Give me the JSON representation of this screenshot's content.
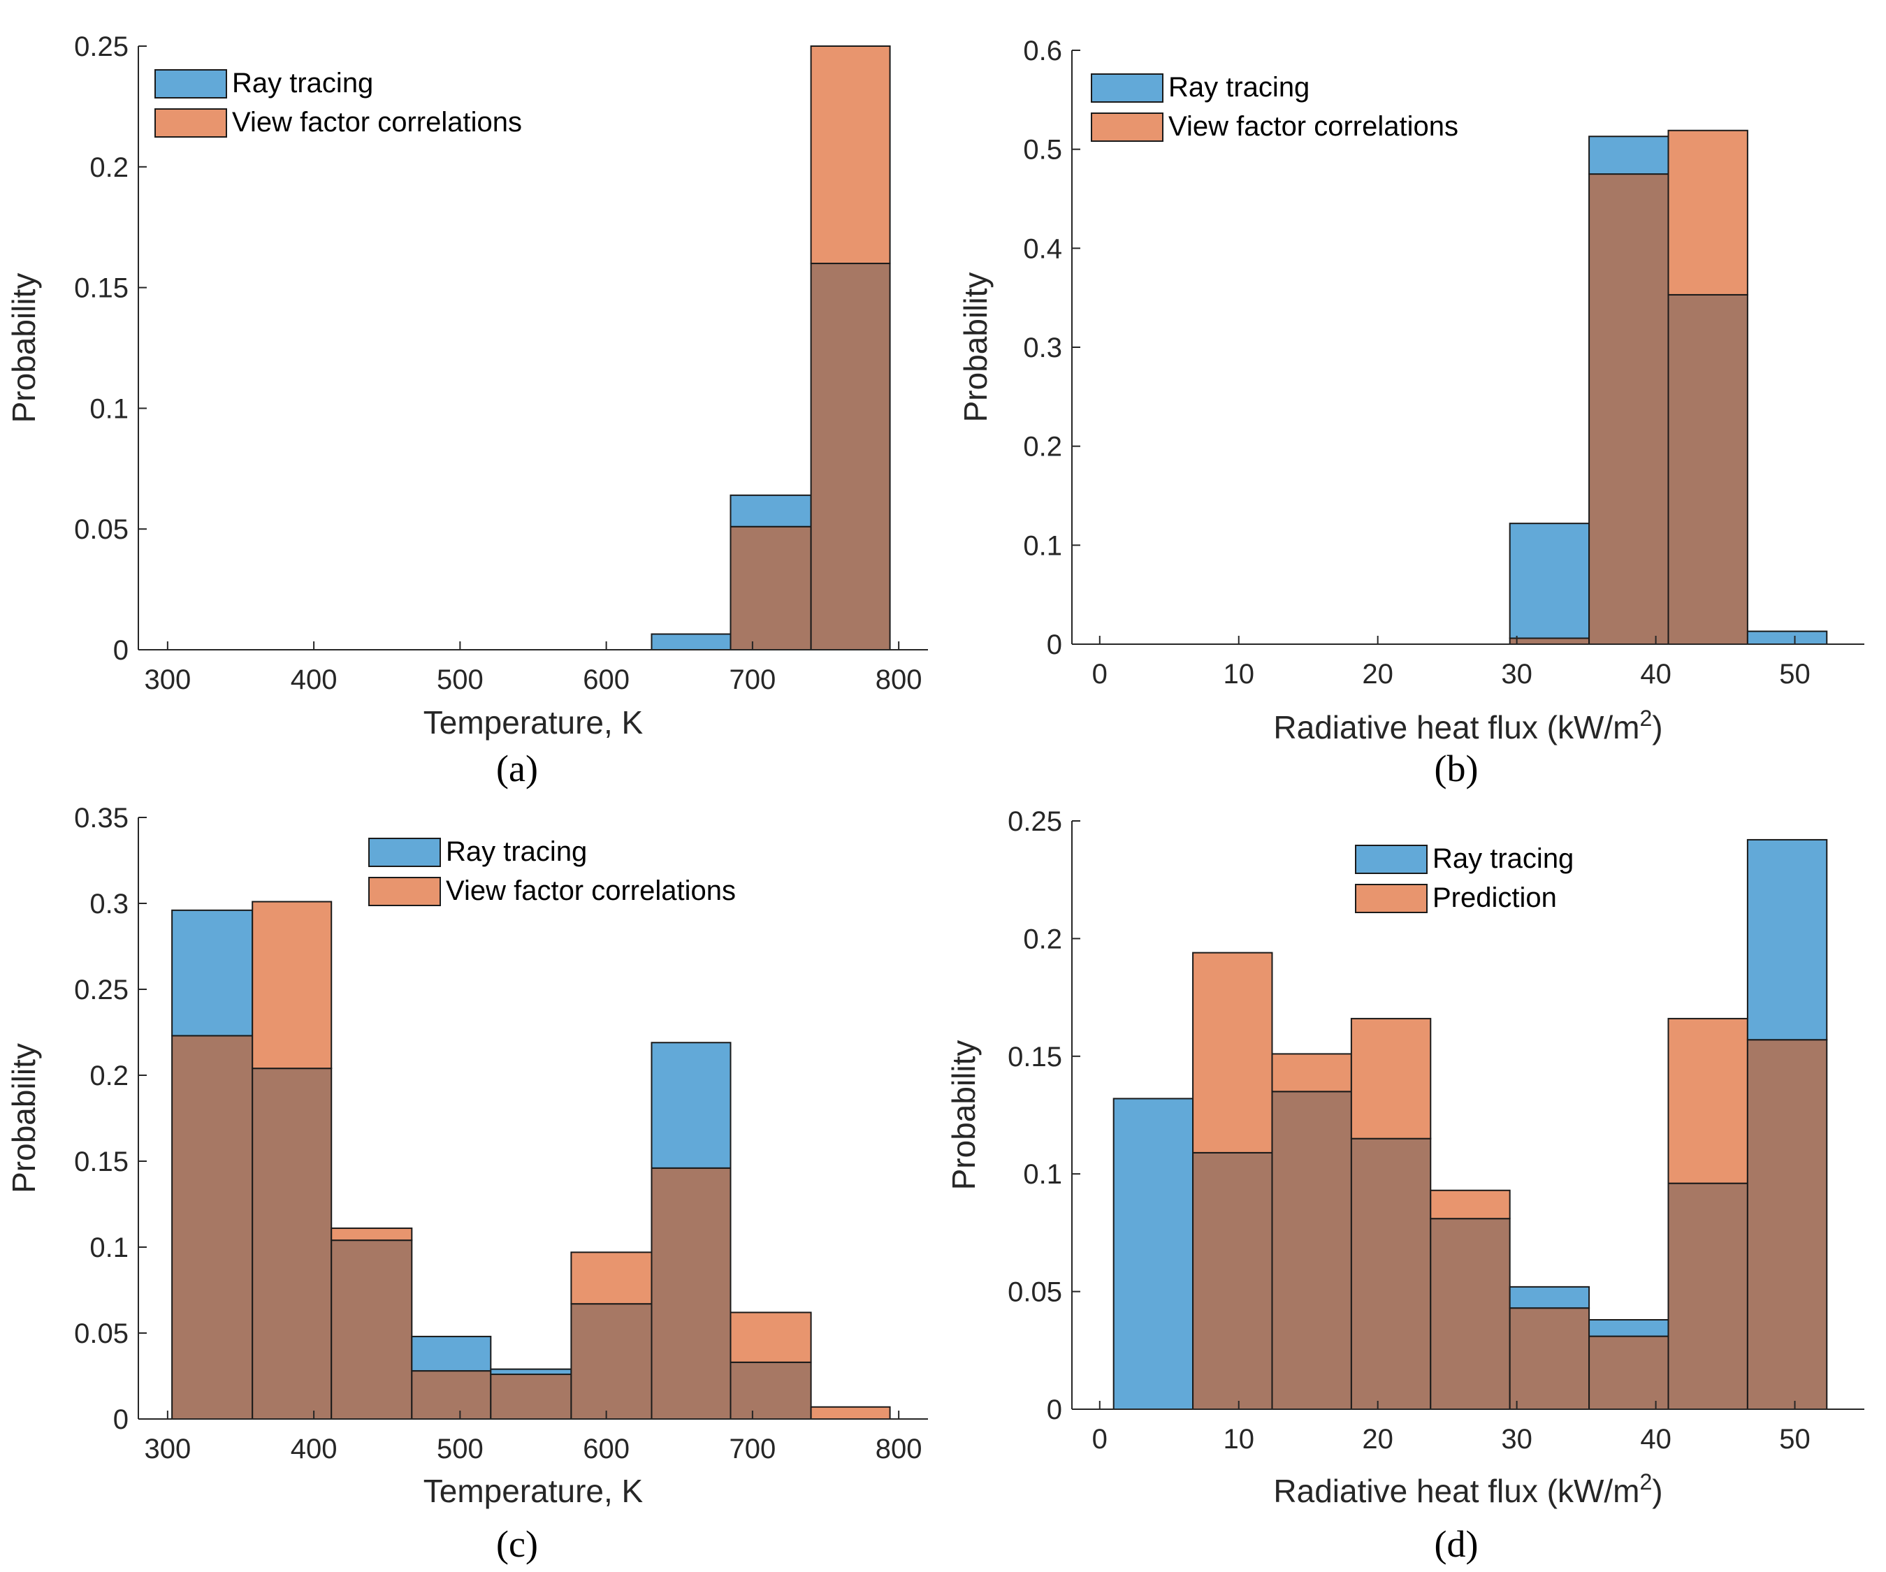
{
  "colors": {
    "ray": "#62a9d8",
    "vf": "#e8956e",
    "overlap": "#a77864",
    "axis": "#262626"
  },
  "chart_data": [
    {
      "panel": "(a)",
      "type": "bar",
      "xlabel": "Temperature, K",
      "xsup": "",
      "ylabel": "Probability",
      "xlim": [
        280,
        820
      ],
      "ylim": [
        0,
        0.25
      ],
      "xticks": [
        300,
        400,
        500,
        600,
        700,
        800
      ],
      "xtick_labels": [
        "300",
        "400",
        "500",
        "600",
        "700",
        "800"
      ],
      "yticks": [
        0,
        0.05,
        0.1,
        0.15,
        0.2,
        0.25
      ],
      "ytick_labels": [
        "0",
        "0.05",
        "0.1",
        "0.15",
        "0.2",
        "0.25"
      ],
      "bin_edges": [
        303,
        358,
        412,
        467,
        521,
        576,
        631,
        685,
        740,
        794
      ],
      "legend_position": "top-left",
      "series": [
        {
          "name": "Ray tracing",
          "values": [
            0,
            0,
            0,
            0,
            0,
            0,
            0.0065,
            0.064,
            0.16
          ]
        },
        {
          "name": "View factor correlations",
          "values": [
            0,
            0,
            0,
            0,
            0,
            0,
            0,
            0.051,
            0.25
          ]
        }
      ]
    },
    {
      "panel": "(b)",
      "type": "bar",
      "xlabel": "Radiative heat flux (kW/m",
      "xsup": "2",
      "xlabel_end": ")",
      "ylabel": "Probability",
      "xlim": [
        -2,
        55
      ],
      "ylim": [
        0,
        0.6
      ],
      "xticks": [
        0,
        10,
        20,
        30,
        40,
        50
      ],
      "xtick_labels": [
        "0",
        "10",
        "20",
        "30",
        "40",
        "50"
      ],
      "yticks": [
        0,
        0.1,
        0.2,
        0.3,
        0.4,
        0.5,
        0.6
      ],
      "ytick_labels": [
        "0",
        "0.1",
        "0.2",
        "0.3",
        "0.4",
        "0.5",
        "0.6"
      ],
      "bin_edges": [
        1,
        6.7,
        12.4,
        18.1,
        23.8,
        29.5,
        35.2,
        40.9,
        46.6,
        52.3
      ],
      "legend_position": "top-left",
      "series": [
        {
          "name": "Ray tracing",
          "values": [
            0,
            0,
            0,
            0,
            0,
            0.122,
            0.513,
            0.353,
            0.013
          ]
        },
        {
          "name": "View factor correlations",
          "values": [
            0,
            0,
            0,
            0,
            0,
            0.006,
            0.475,
            0.519,
            0
          ]
        }
      ]
    },
    {
      "panel": "(c)",
      "type": "bar",
      "xlabel": "Temperature, K",
      "xsup": "",
      "ylabel": "Probability",
      "xlim": [
        280,
        820
      ],
      "ylim": [
        0,
        0.35
      ],
      "xticks": [
        300,
        400,
        500,
        600,
        700,
        800
      ],
      "xtick_labels": [
        "300",
        "400",
        "500",
        "600",
        "700",
        "800"
      ],
      "yticks": [
        0,
        0.05,
        0.1,
        0.15,
        0.2,
        0.25,
        0.3,
        0.35
      ],
      "ytick_labels": [
        "0",
        "0.05",
        "0.1",
        "0.15",
        "0.2",
        "0.25",
        "0.3",
        "0.35"
      ],
      "bin_edges": [
        303,
        358,
        412,
        467,
        521,
        576,
        631,
        685,
        740,
        794
      ],
      "legend_position": "top-center",
      "series": [
        {
          "name": "Ray tracing",
          "values": [
            0.296,
            0.204,
            0.104,
            0.048,
            0.029,
            0.067,
            0.219,
            0.033,
            0
          ]
        },
        {
          "name": "View factor correlations",
          "values": [
            0.223,
            0.301,
            0.111,
            0.028,
            0.026,
            0.097,
            0.146,
            0.062,
            0.007
          ]
        }
      ]
    },
    {
      "panel": "(d)",
      "type": "bar",
      "xlabel": "Radiative heat flux (kW/m",
      "xsup": "2",
      "xlabel_end": ")",
      "ylabel": "Probability",
      "xlim": [
        -2,
        55
      ],
      "ylim": [
        0,
        0.25
      ],
      "xticks": [
        0,
        10,
        20,
        30,
        40,
        50
      ],
      "xtick_labels": [
        "0",
        "10",
        "20",
        "30",
        "40",
        "50"
      ],
      "yticks": [
        0,
        0.05,
        0.1,
        0.15,
        0.2,
        0.25
      ],
      "ytick_labels": [
        "0",
        "0.05",
        "0.1",
        "0.15",
        "0.2",
        "0.25"
      ],
      "bin_edges": [
        1,
        6.7,
        12.4,
        18.1,
        23.8,
        29.5,
        35.2,
        40.9,
        46.6,
        52.3
      ],
      "legend_position": "top-center",
      "series": [
        {
          "name": "Ray tracing",
          "values": [
            0.132,
            0.109,
            0.135,
            0.115,
            0.081,
            0.052,
            0.038,
            0.096,
            0.242
          ]
        },
        {
          "name": "Prediction",
          "values": [
            0,
            0.194,
            0.151,
            0.166,
            0.093,
            0.043,
            0.031,
            0.166,
            0.157
          ]
        }
      ]
    }
  ]
}
